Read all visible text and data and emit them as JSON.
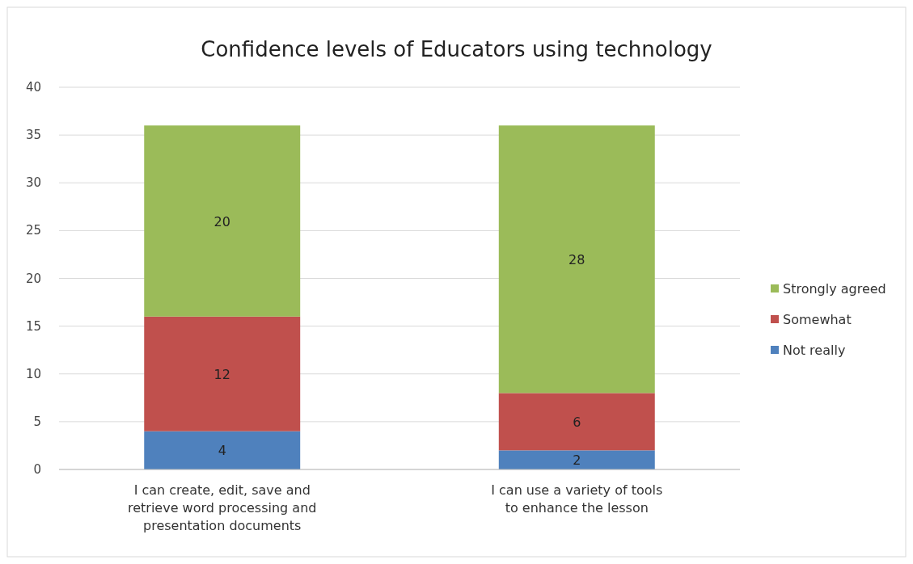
{
  "chart_data": {
    "type": "bar",
    "title": "Confidence levels of Educators using technology",
    "categories": [
      "I can create, edit, save and retrieve word processing and presentation documents",
      "I can use a variety of tools to enhance the lesson"
    ],
    "stacked": true,
    "data_labels": true,
    "legend": "right",
    "grid": "y",
    "ylim": [
      0,
      40
    ],
    "yticks": [
      0,
      5,
      10,
      15,
      20,
      25,
      30,
      35,
      40
    ],
    "series": [
      {
        "name": "Not really",
        "color": "#4f81bd",
        "values": [
          4,
          2
        ]
      },
      {
        "name": "Somewhat",
        "color": "#c0504d",
        "values": [
          12,
          6
        ]
      },
      {
        "name": "Strongly agreed",
        "color": "#9bbb59",
        "values": [
          20,
          28
        ]
      }
    ]
  }
}
